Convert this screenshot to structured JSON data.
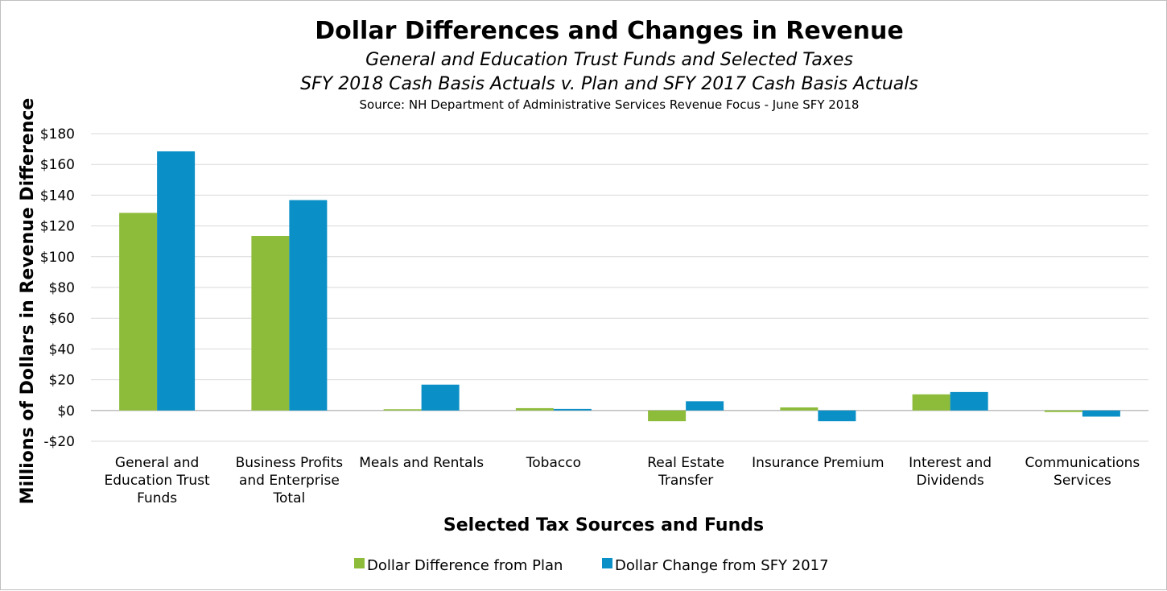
{
  "chart_data": {
    "type": "bar",
    "title": "Dollar Differences and Changes in Revenue",
    "subtitle_lines": [
      "General and Education Trust Funds and Selected Taxes",
      "SFY 2018 Cash Basis Actuals v. Plan and SFY 2017 Cash Basis Actuals"
    ],
    "source": "Source: NH Department of Administrative Services Revenue Focus - June SFY 2018",
    "xlabel": "Selected Tax Sources and Funds",
    "ylabel": "Millions of Dollars in Revenue Difference",
    "ylim": [
      -20,
      180
    ],
    "yticks": [
      -20,
      0,
      20,
      40,
      60,
      80,
      100,
      120,
      140,
      160,
      180
    ],
    "ytick_labels": [
      "-$20",
      "$0",
      "$20",
      "$40",
      "$60",
      "$80",
      "$100",
      "$120",
      "$140",
      "$160",
      "$180"
    ],
    "grid": true,
    "legend_position": "bottom",
    "categories": [
      [
        "General and",
        "Education Trust",
        "Funds"
      ],
      [
        "Business Profits",
        "and Enterprise",
        "Total"
      ],
      [
        "Meals and Rentals"
      ],
      [
        "Tobacco"
      ],
      [
        "Real Estate",
        "Transfer"
      ],
      [
        "Insurance Premium"
      ],
      [
        "Interest and",
        "Dividends"
      ],
      [
        "Communications",
        "Services"
      ]
    ],
    "series": [
      {
        "name": "Dollar Difference from Plan",
        "color": "#8dbb3a",
        "values": [
          128.5,
          113.5,
          0.8,
          1.5,
          -7.0,
          2.0,
          10.5,
          -1.0
        ]
      },
      {
        "name": "Dollar Change from SFY 2017",
        "color": "#0a8fc6",
        "values": [
          168.5,
          136.8,
          16.8,
          1.0,
          6.0,
          -7.0,
          12.0,
          -4.0
        ]
      }
    ]
  }
}
